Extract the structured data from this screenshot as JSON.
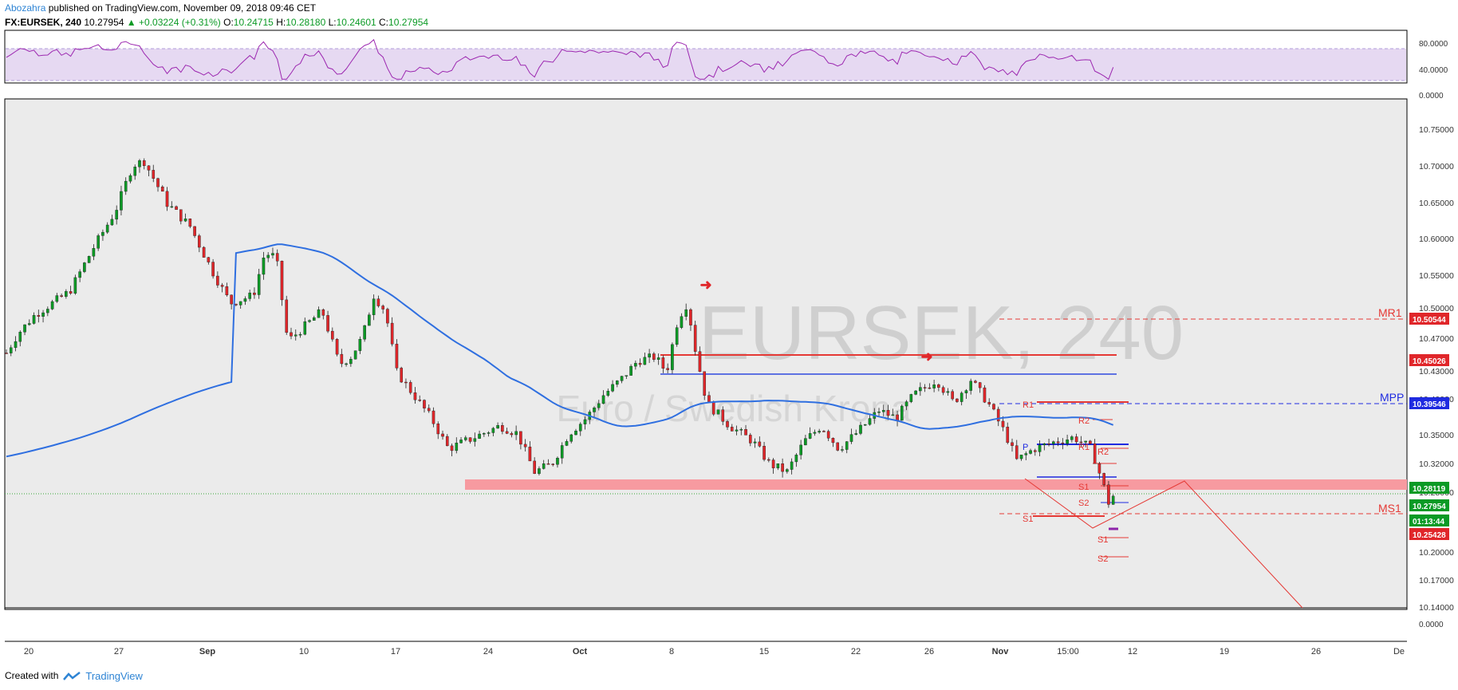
{
  "header": {
    "author": "Abozahra",
    "published": "published on TradingView.com, November 09, 2018 09:46 CET"
  },
  "symbol_bar": {
    "symbol": "FX:EURSEK, 240",
    "last": "10.27954",
    "change": "+0.03224 (+0.31%)",
    "open_label": "O:",
    "open": "10.24715",
    "high_label": "H:",
    "high": "10.28180",
    "low_label": "L:",
    "low": "10.24601",
    "close_label": "C:",
    "close": "10.27954"
  },
  "watermark": {
    "symbol": "EURSEK, 240",
    "description": "Euro / Swedish Krona"
  },
  "footer": {
    "created_with": "Created with",
    "brand": "TradingView"
  },
  "colors": {
    "up": "#0b9a25",
    "down": "#e0262a",
    "ma": "#2f6fe0",
    "rsi": "#9c27b0",
    "resistance": "#e53935",
    "support_zone": "#f79aa0",
    "pivot": "#1f2be0"
  },
  "chart_data": {
    "type": "candlestick",
    "timeframe": "240",
    "price_axis": [
      "10.75000",
      "10.70000",
      "10.65000",
      "10.60000",
      "10.55000",
      "10.50000",
      "10.47000",
      "10.43000",
      "10.40000",
      "10.35000",
      "10.32000",
      "10.28000",
      "10.20000",
      "10.17000",
      "10.14000"
    ],
    "rsi_axis": [
      "80.0000",
      "40.0000",
      "0.0000"
    ],
    "extra_axis": [
      "0.0000"
    ],
    "time_axis": [
      "20",
      "27",
      "Sep",
      "10",
      "17",
      "24",
      "Oct",
      "8",
      "15",
      "22",
      "26",
      "Nov",
      "15:00",
      "12",
      "19",
      "26",
      "De"
    ],
    "price_labels": [
      {
        "text": "10.50544",
        "kind": "red"
      },
      {
        "text": "10.45026",
        "kind": "red"
      },
      {
        "text": "10.39546",
        "kind": "blue"
      },
      {
        "text": "10.28119",
        "kind": "green"
      },
      {
        "text": "10.27954",
        "kind": "green"
      },
      {
        "text": "01:13:44",
        "kind": "green"
      },
      {
        "text": "10.25428",
        "kind": "red"
      }
    ],
    "level_labels": {
      "mr1": "MR1",
      "mpp": "MPP",
      "ms1": "MS1",
      "weekly": [
        "R1",
        "R2",
        "P",
        "R1",
        "R2",
        "S1",
        "S2",
        "S1",
        "S1",
        "S2"
      ]
    },
    "ma_label": "MA",
    "rsi_range": [
      0,
      100
    ],
    "price_range": [
      10.13,
      10.78
    ]
  }
}
